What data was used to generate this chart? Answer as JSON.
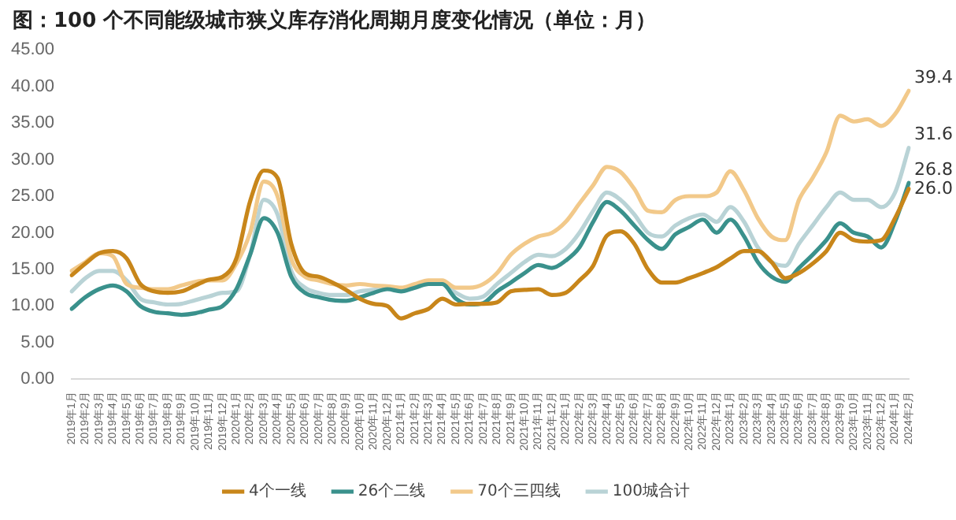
{
  "chart_data": {
    "type": "line",
    "title": "图：100 个不同能级城市狭义库存消化周期月度变化情况（单位：月）",
    "categories": [
      "2019年1月",
      "2019年2月",
      "2019年3月",
      "2019年4月",
      "2019年5月",
      "2019年6月",
      "2019年7月",
      "2019年8月",
      "2019年9月",
      "2019年10月",
      "2019年11月",
      "2019年12月",
      "2020年1月",
      "2020年2月",
      "2020年3月",
      "2020年4月",
      "2020年5月",
      "2020年6月",
      "2020年7月",
      "2020年8月",
      "2020年9月",
      "2020年10月",
      "2020年11月",
      "2020年12月",
      "2021年1月",
      "2021年2月",
      "2021年3月",
      "2021年4月",
      "2021年5月",
      "2021年6月",
      "2021年7月",
      "2021年8月",
      "2021年9月",
      "2021年10月",
      "2021年11月",
      "2021年12月",
      "2022年1月",
      "2022年2月",
      "2022年3月",
      "2022年4月",
      "2022年5月",
      "2022年6月",
      "2022年7月",
      "2022年8月",
      "2022年9月",
      "2022年10月",
      "2022年11月",
      "2022年12月",
      "2023年1月",
      "2023年2月",
      "2023年3月",
      "2023年4月",
      "2023年5月",
      "2023年6月",
      "2023年7月",
      "2023年8月",
      "2023年9月",
      "2023年10月",
      "2023年11月",
      "2023年12月",
      "2024年1月",
      "2024年2月"
    ],
    "series": [
      {
        "name": "4个一线",
        "color": "#c8861a",
        "values": [
          14.2,
          15.8,
          17.2,
          17.5,
          16.5,
          13,
          12,
          11.8,
          12,
          12.8,
          13.6,
          14,
          16.5,
          24.3,
          28.5,
          27.5,
          18.5,
          14.5,
          14,
          13.2,
          12.2,
          11,
          10.3,
          10,
          8.3,
          9,
          9.6,
          11,
          10.2,
          10.3,
          10.3,
          10.5,
          12,
          12.2,
          12.3,
          11.5,
          11.8,
          13.5,
          15.5,
          19.6,
          20.2,
          18.5,
          15,
          13.2,
          13.2,
          13.8,
          14.5,
          15.3,
          16.5,
          17.5,
          17.5,
          16,
          13.8,
          14.5,
          15.8,
          17.5,
          20,
          19,
          18.8,
          19,
          22,
          26.0
        ],
        "value_labels": [
          null,
          null,
          null,
          null,
          null,
          null,
          null,
          null,
          null,
          null,
          null,
          null,
          null,
          null,
          null,
          null,
          null,
          null,
          null,
          null,
          null,
          null,
          null,
          null,
          null,
          null,
          null,
          null,
          null,
          null,
          null,
          null,
          null,
          null,
          null,
          null,
          null,
          null,
          null,
          null,
          null,
          null,
          null,
          null,
          null,
          null,
          null,
          null,
          null,
          null,
          null,
          null,
          null,
          null,
          null,
          null,
          null,
          null,
          null,
          null,
          null,
          "26.0"
        ]
      },
      {
        "name": "26个二线",
        "color": "#3a918c",
        "values": [
          9.6,
          11.2,
          12.3,
          12.8,
          12,
          10,
          9.2,
          9,
          8.8,
          9,
          9.5,
          10,
          12.3,
          17,
          22,
          20,
          14,
          11.8,
          11.2,
          10.8,
          10.7,
          11.2,
          11.8,
          12.3,
          12,
          12.5,
          13,
          13,
          11,
          10.2,
          10.4,
          12,
          13.2,
          14.5,
          15.6,
          15.2,
          16.2,
          18,
          21.5,
          24.2,
          23,
          21,
          19,
          17.8,
          19.8,
          20.8,
          21.8,
          20,
          21.8,
          19.5,
          16,
          14,
          13.3,
          15.2,
          17,
          19,
          21.3,
          20,
          19.5,
          18,
          21.5,
          26.8
        ],
        "value_labels": [
          null,
          null,
          null,
          null,
          null,
          null,
          null,
          null,
          null,
          null,
          null,
          null,
          null,
          null,
          null,
          null,
          null,
          null,
          null,
          null,
          null,
          null,
          null,
          null,
          null,
          null,
          null,
          null,
          null,
          null,
          null,
          null,
          null,
          null,
          null,
          null,
          null,
          null,
          null,
          null,
          null,
          null,
          null,
          null,
          null,
          null,
          null,
          null,
          null,
          null,
          null,
          null,
          null,
          null,
          null,
          null,
          null,
          null,
          null,
          null,
          null,
          "26.8"
        ]
      },
      {
        "name": "70个三四线",
        "color": "#f2c98a",
        "values": [
          14.8,
          16,
          17.2,
          16.8,
          13,
          12.5,
          12.3,
          12.3,
          12.8,
          13.3,
          13.5,
          13.5,
          15.8,
          20,
          27,
          25,
          16.5,
          14,
          13.5,
          13,
          12.8,
          13,
          12.8,
          12.7,
          12.5,
          13,
          13.5,
          13.5,
          12.5,
          12.5,
          13,
          14.5,
          17,
          18.5,
          19.5,
          20,
          21.5,
          24,
          26.5,
          29,
          28.3,
          26,
          23,
          22.8,
          24.5,
          25,
          25,
          25.5,
          28.4,
          25.8,
          22,
          19.5,
          19,
          24.5,
          27.5,
          31,
          36,
          35.2,
          35.5,
          34.6,
          36.2,
          39.4
        ],
        "value_labels": [
          null,
          null,
          null,
          null,
          null,
          null,
          null,
          null,
          null,
          null,
          null,
          null,
          null,
          null,
          null,
          null,
          null,
          null,
          null,
          null,
          null,
          null,
          null,
          null,
          null,
          null,
          null,
          null,
          null,
          null,
          null,
          null,
          null,
          null,
          null,
          null,
          null,
          null,
          null,
          null,
          null,
          null,
          null,
          null,
          null,
          null,
          null,
          null,
          null,
          null,
          null,
          null,
          null,
          null,
          null,
          null,
          null,
          null,
          null,
          null,
          null,
          "39.4"
        ]
      },
      {
        "name": "100城合计",
        "color": "#b9d3d6",
        "values": [
          12,
          13.8,
          14.8,
          14.8,
          13.5,
          11,
          10.5,
          10.2,
          10.3,
          10.8,
          11.3,
          11.8,
          12,
          17,
          24.5,
          22.5,
          14.8,
          12.5,
          11.8,
          11.5,
          11.5,
          12,
          12.2,
          12.5,
          12.2,
          12.5,
          13,
          13,
          11.8,
          11,
          11.3,
          13,
          14.5,
          16,
          17,
          16.8,
          17.8,
          20,
          23,
          25.5,
          24.5,
          22.5,
          20,
          19.5,
          21,
          22,
          22.5,
          21.5,
          23.5,
          21.5,
          18,
          16,
          15.5,
          18.5,
          21,
          23.5,
          25.5,
          24.5,
          24.5,
          23.5,
          25.5,
          31.6
        ],
        "value_labels": [
          null,
          null,
          null,
          null,
          null,
          null,
          null,
          null,
          null,
          null,
          null,
          null,
          null,
          null,
          null,
          null,
          null,
          null,
          null,
          null,
          null,
          null,
          null,
          null,
          null,
          null,
          null,
          null,
          null,
          null,
          null,
          null,
          null,
          null,
          null,
          null,
          null,
          null,
          null,
          null,
          null,
          null,
          null,
          null,
          null,
          null,
          null,
          null,
          null,
          null,
          null,
          null,
          null,
          null,
          null,
          null,
          null,
          null,
          null,
          null,
          null,
          "31.6"
        ]
      }
    ],
    "ylim": [
      0,
      45
    ],
    "yticks": [
      {
        "value": 0,
        "label": "0.00"
      },
      {
        "value": 5,
        "label": "5.00"
      },
      {
        "value": 10,
        "label": "10.00"
      },
      {
        "value": 15,
        "label": "15.00"
      },
      {
        "value": 20,
        "label": "20.00"
      },
      {
        "value": 25,
        "label": "25.00"
      },
      {
        "value": 30,
        "label": "30.00"
      },
      {
        "value": 35,
        "label": "35.00"
      },
      {
        "value": 40,
        "label": "40.00"
      },
      {
        "value": 45,
        "label": "45.00"
      }
    ],
    "grid": false,
    "legend": "bottom",
    "marker": "none",
    "line_style": "solid"
  }
}
